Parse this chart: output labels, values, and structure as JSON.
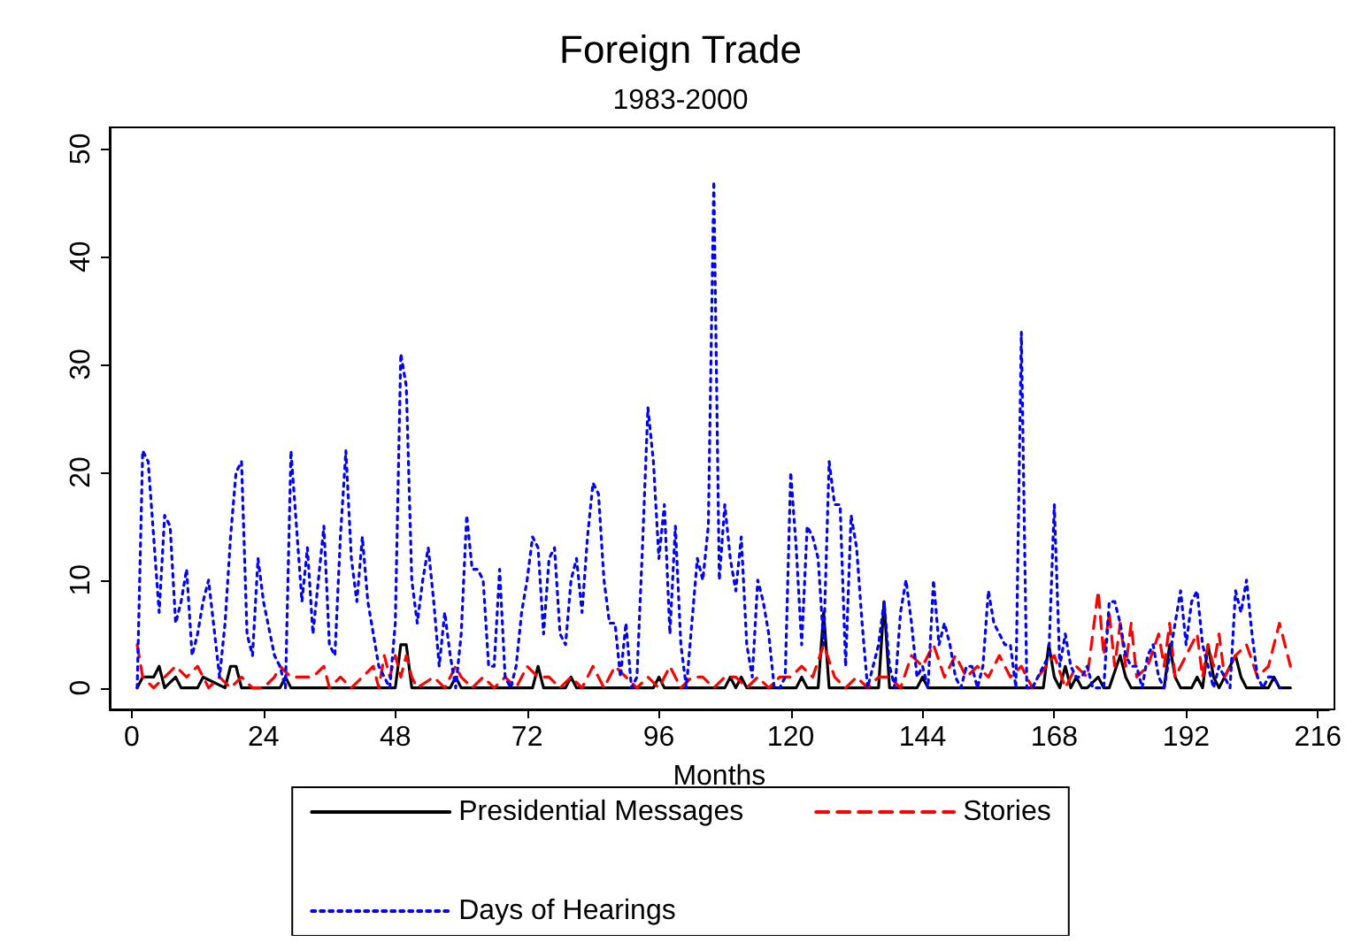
{
  "chart_data": {
    "type": "line",
    "title": "Foreign Trade",
    "subtitle": "1983-2000",
    "xlabel": "Months",
    "xlim": [
      -4,
      218
    ],
    "xticks": [
      0,
      24,
      48,
      72,
      96,
      120,
      144,
      168,
      192,
      216
    ],
    "ylim": [
      -2,
      52
    ],
    "yticks": [
      0,
      10,
      20,
      30,
      40,
      50
    ],
    "grid": false,
    "legend": "bottom",
    "marker": "none",
    "series": [
      {
        "name": "Presidential Messages",
        "color": "#000000",
        "line_style": "solid",
        "x": [
          1,
          2,
          3,
          4,
          5,
          6,
          8,
          9,
          12,
          13,
          17,
          18,
          19,
          20,
          27,
          28,
          29,
          48,
          49,
          50,
          51,
          58,
          59,
          60,
          73,
          74,
          75,
          79,
          80,
          81,
          95,
          96,
          97,
          108,
          109,
          110,
          111,
          112,
          113,
          121,
          122,
          123,
          125,
          126,
          127,
          136,
          137,
          138,
          143,
          144,
          145,
          166,
          167,
          168,
          169,
          170,
          171,
          172,
          173,
          174,
          176,
          177,
          178,
          180,
          181,
          182,
          188,
          189,
          190,
          191,
          193,
          194,
          195,
          196,
          197,
          198,
          201,
          202,
          203,
          207,
          208,
          209,
          211
        ],
        "values": [
          0,
          1,
          1,
          1,
          2,
          0,
          1,
          0,
          0,
          1,
          0,
          2,
          2,
          0,
          0,
          1,
          0,
          0,
          4,
          4,
          0,
          0,
          1,
          0,
          0,
          2,
          0,
          0,
          1,
          0,
          0,
          1,
          0,
          0,
          1,
          0,
          1,
          0,
          0,
          0,
          1,
          0,
          0,
          7,
          0,
          0,
          8,
          0,
          0,
          1,
          0,
          0,
          4,
          1,
          0,
          2,
          0,
          1,
          0,
          0,
          1,
          0,
          0,
          3,
          1,
          0,
          0,
          4,
          1,
          0,
          0,
          1,
          0,
          4,
          1,
          0,
          3,
          1,
          0,
          0,
          1,
          0,
          0
        ]
      },
      {
        "name": "Stories",
        "color": "#ff0000",
        "line_style": "dashed",
        "x": [
          1,
          2,
          4,
          6,
          8,
          10,
          12,
          14,
          16,
          18,
          20,
          22,
          24,
          26,
          27,
          29,
          33,
          35,
          36,
          38,
          40,
          42,
          44,
          45,
          46,
          47,
          48,
          49,
          50,
          51,
          52,
          55,
          57,
          59,
          60,
          62,
          64,
          66,
          68,
          70,
          72,
          74,
          76,
          78,
          80,
          82,
          84,
          86,
          88,
          90,
          92,
          94,
          96,
          98,
          100,
          102,
          104,
          106,
          108,
          110,
          112,
          114,
          116,
          118,
          120,
          122,
          124,
          126,
          128,
          130,
          132,
          134,
          136,
          138,
          140,
          142,
          144,
          146,
          148,
          150,
          152,
          154,
          156,
          158,
          160,
          162,
          164,
          165,
          168,
          170,
          172,
          174,
          176,
          177,
          178,
          179,
          180,
          181,
          182,
          183,
          185,
          187,
          188,
          189,
          190,
          192,
          194,
          195,
          196,
          197,
          198,
          199,
          201,
          203,
          205,
          207,
          209,
          211
        ],
        "values": [
          4,
          1,
          0,
          1,
          2,
          1,
          2,
          0,
          1,
          0,
          1,
          0,
          0,
          1,
          2,
          1,
          1,
          2,
          0,
          1,
          0,
          1,
          2,
          0,
          3,
          1,
          3,
          1,
          3,
          1,
          0,
          1,
          0,
          2,
          1,
          0,
          1,
          0,
          1,
          0,
          2,
          1,
          1,
          0,
          1,
          0,
          2,
          0,
          2,
          1,
          0,
          1,
          0,
          2,
          0,
          1,
          1,
          0,
          1,
          1,
          0,
          1,
          0,
          1,
          1,
          2,
          1,
          4,
          1,
          0,
          1,
          0,
          1,
          1,
          0,
          3,
          2,
          4,
          1,
          3,
          1,
          2,
          1,
          3,
          1,
          2,
          0,
          1,
          3,
          0,
          2,
          1,
          9,
          3,
          7,
          2,
          6,
          2,
          6,
          1,
          2,
          5,
          2,
          6,
          1,
          3,
          5,
          1,
          4,
          2,
          5,
          1,
          3,
          4,
          1,
          2,
          6,
          2
        ]
      },
      {
        "name": "Days of Hearings",
        "color": "#0000ff",
        "line_style": "dotted",
        "x": [
          1,
          2,
          3,
          5,
          6,
          7,
          8,
          9,
          10,
          11,
          12,
          13,
          14,
          16,
          17,
          18,
          19,
          20,
          21,
          22,
          23,
          24,
          26,
          27,
          28,
          29,
          30,
          31,
          32,
          33,
          34,
          35,
          36,
          37,
          38,
          39,
          40,
          41,
          42,
          43,
          44,
          45,
          46,
          47,
          48,
          49,
          50,
          51,
          52,
          53,
          54,
          55,
          56,
          57,
          58,
          59,
          60,
          61,
          62,
          63,
          64,
          65,
          66,
          67,
          68,
          69,
          70,
          71,
          72,
          73,
          74,
          75,
          76,
          77,
          78,
          79,
          80,
          81,
          82,
          83,
          84,
          85,
          86,
          87,
          88,
          89,
          90,
          91,
          92,
          93,
          94,
          95,
          96,
          97,
          98,
          99,
          100,
          101,
          102,
          103,
          104,
          105,
          106,
          107,
          108,
          109,
          110,
          111,
          112,
          113,
          114,
          115,
          116,
          117,
          118,
          119,
          120,
          121,
          122,
          123,
          124,
          125,
          126,
          127,
          128,
          129,
          130,
          131,
          132,
          133,
          134,
          135,
          136,
          137,
          138,
          139,
          140,
          141,
          142,
          143,
          144,
          145,
          146,
          147,
          148,
          149,
          150,
          151,
          152,
          153,
          154,
          155,
          156,
          157,
          158,
          159,
          160,
          161,
          162,
          163,
          164,
          165,
          166,
          167,
          168,
          169,
          170,
          171,
          172,
          173,
          174,
          175,
          176,
          177,
          178,
          179,
          180,
          181,
          182,
          183,
          184,
          185,
          186,
          187,
          188,
          189,
          190,
          191,
          192,
          193,
          194,
          195,
          196,
          197,
          198,
          199,
          200,
          201,
          202,
          203,
          204,
          205,
          206,
          207,
          208,
          209
        ],
        "values": [
          0,
          22,
          21,
          7,
          16,
          15,
          6,
          8,
          11,
          3,
          5,
          8,
          10,
          1,
          6,
          14,
          20,
          21,
          5,
          3,
          12,
          8,
          3,
          2,
          0,
          22,
          15,
          8,
          13,
          5,
          10,
          15,
          4,
          3,
          14,
          22,
          12,
          8,
          14,
          8,
          5,
          2,
          1,
          0,
          6,
          31,
          28,
          10,
          6,
          10,
          13,
          8,
          2,
          7,
          3,
          0,
          5,
          16,
          11,
          11,
          10,
          2,
          2,
          11,
          1,
          0,
          2,
          7,
          10,
          14,
          13,
          5,
          12,
          13,
          5,
          4,
          10,
          12,
          7,
          14,
          19,
          18,
          10,
          6,
          6,
          1,
          6,
          0,
          1,
          13,
          26,
          21,
          12,
          17,
          5,
          15,
          4,
          0,
          6,
          12,
          10,
          15,
          47,
          10,
          17,
          12,
          9,
          14,
          4,
          1,
          10,
          8,
          5,
          0,
          0,
          1,
          20,
          13,
          4,
          15,
          14,
          12,
          4,
          21,
          17,
          17,
          2,
          16,
          13,
          6,
          0,
          2,
          4,
          8,
          2,
          0,
          7,
          10,
          6,
          1,
          2,
          0,
          10,
          4,
          6,
          4,
          1,
          0,
          2,
          2,
          0,
          2,
          9,
          6,
          5,
          4,
          4,
          0,
          33,
          0,
          0,
          1,
          2,
          3,
          17,
          2,
          5,
          2,
          1,
          1,
          2,
          0,
          0,
          0,
          8,
          8,
          6,
          3,
          2,
          2,
          0,
          3,
          4,
          1,
          0,
          3,
          6,
          9,
          4,
          8,
          9,
          4,
          2,
          0,
          2,
          1,
          0,
          9,
          7,
          10,
          5,
          1,
          0,
          1,
          1,
          0
        ]
      }
    ]
  }
}
